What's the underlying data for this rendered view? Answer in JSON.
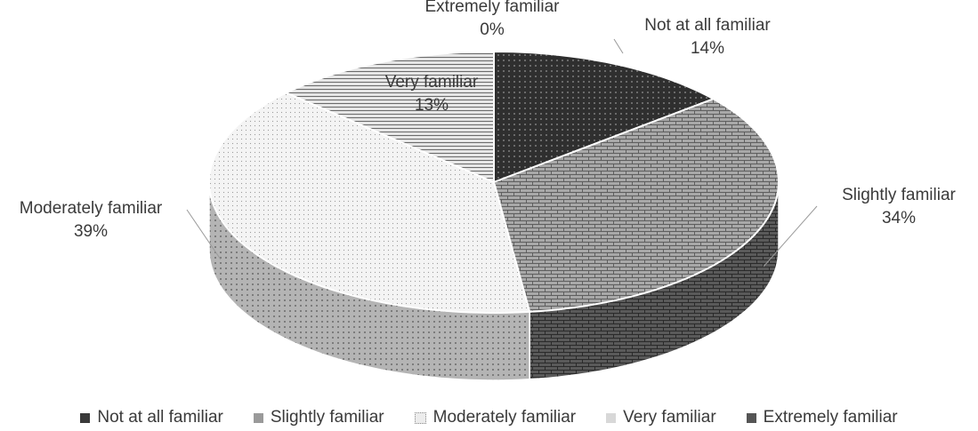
{
  "chart_data": {
    "type": "pie",
    "title": "",
    "categories": [
      "Not at all familiar",
      "Slightly familiar",
      "Moderately familiar",
      "Very familiar",
      "Extremely familiar"
    ],
    "values": [
      14,
      34,
      39,
      13,
      0
    ],
    "labels": [
      "14%",
      "34%",
      "39%",
      "13%",
      "0%"
    ],
    "legend_position": "bottom",
    "three_d": true,
    "colors": [
      "#3a3a3a",
      "#9a9a9a",
      "#ececec",
      "#d8d8d8",
      "#555555"
    ]
  }
}
